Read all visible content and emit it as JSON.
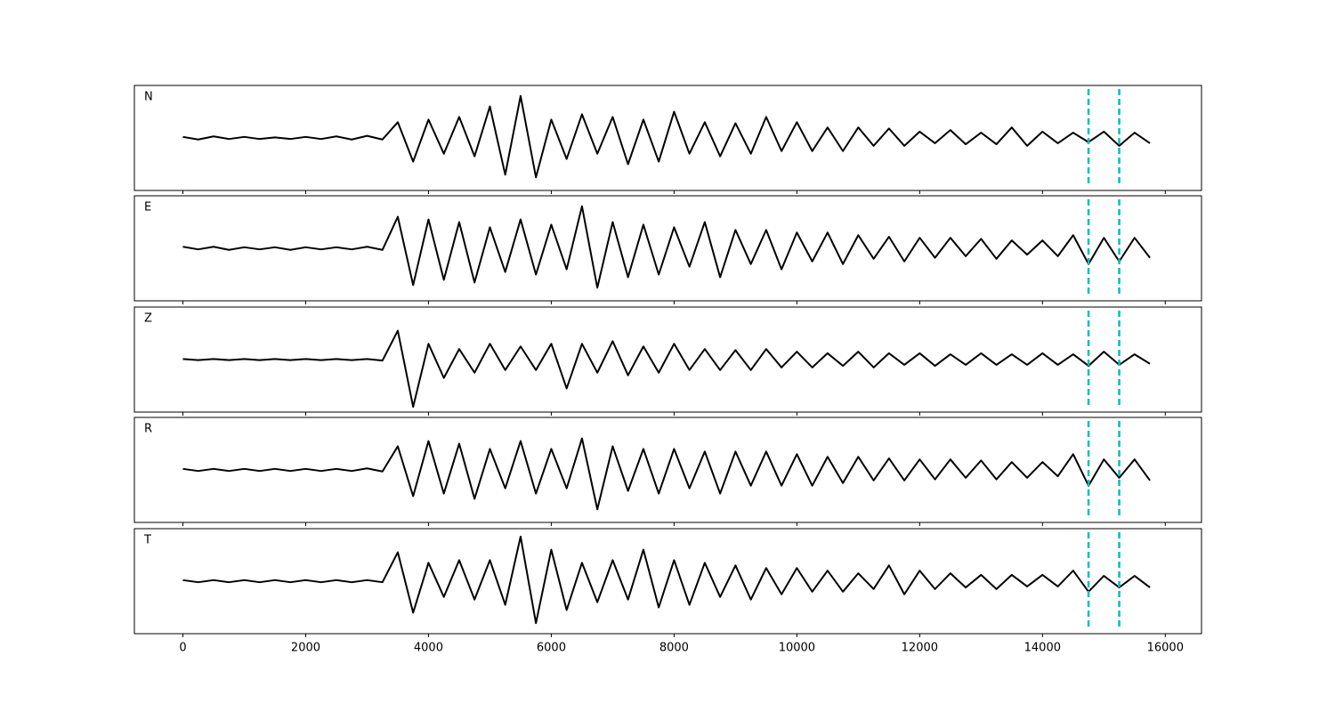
{
  "chart_data": [
    {
      "type": "line",
      "label": "N",
      "color": "#000000",
      "xlim": [
        -790,
        16590
      ],
      "ylim": [
        -1,
        1
      ],
      "vlines": [
        14750,
        15250
      ],
      "vline_color": "#00bfbf",
      "x": [
        0,
        250,
        500,
        750,
        1000,
        1250,
        1500,
        1750,
        2000,
        2250,
        2500,
        2750,
        3000,
        3250,
        3500,
        3750,
        4000,
        4250,
        4500,
        4750,
        5000,
        5250,
        5500,
        5750,
        6000,
        6250,
        6500,
        6750,
        7000,
        7250,
        7500,
        7750,
        8000,
        8250,
        8500,
        8750,
        9000,
        9250,
        9500,
        9750,
        10000,
        10250,
        10500,
        10750,
        11000,
        11250,
        11500,
        11750,
        12000,
        12250,
        12500,
        12750,
        13000,
        13250,
        13500,
        13750,
        14000,
        14250,
        14500,
        14750,
        15000,
        15250,
        15500,
        15750
      ],
      "values": [
        0.02,
        -0.03,
        0.03,
        -0.02,
        0.02,
        -0.02,
        0.01,
        -0.02,
        0.02,
        -0.02,
        0.03,
        -0.03,
        0.04,
        -0.03,
        0.3,
        -0.45,
        0.35,
        -0.3,
        0.4,
        -0.35,
        0.6,
        -0.7,
        0.8,
        -0.75,
        0.35,
        -0.4,
        0.45,
        -0.3,
        0.4,
        -0.5,
        0.35,
        -0.45,
        0.5,
        -0.3,
        0.3,
        -0.35,
        0.28,
        -0.3,
        0.4,
        -0.25,
        0.3,
        -0.25,
        0.2,
        -0.25,
        0.2,
        -0.15,
        0.18,
        -0.15,
        0.12,
        -0.1,
        0.15,
        -0.12,
        0.1,
        -0.12,
        0.2,
        -0.15,
        0.12,
        -0.1,
        0.1,
        -0.08,
        0.12,
        -0.15,
        0.1,
        -0.1
      ]
    },
    {
      "type": "line",
      "label": "E",
      "color": "#000000",
      "xlim": [
        -790,
        16590
      ],
      "ylim": [
        -1,
        1
      ],
      "vlines": [
        14750,
        15250
      ],
      "vline_color": "#00bfbf",
      "x": [
        0,
        250,
        500,
        750,
        1000,
        1250,
        1500,
        1750,
        2000,
        2250,
        2500,
        2750,
        3000,
        3250,
        3500,
        3750,
        4000,
        4250,
        4500,
        4750,
        5000,
        5250,
        5500,
        5750,
        6000,
        6250,
        6500,
        6750,
        7000,
        7250,
        7500,
        7750,
        8000,
        8250,
        8500,
        8750,
        9000,
        9250,
        9500,
        9750,
        10000,
        10250,
        10500,
        10750,
        11000,
        11250,
        11500,
        11750,
        12000,
        12250,
        12500,
        12750,
        13000,
        13250,
        13500,
        13750,
        14000,
        14250,
        14500,
        14750,
        15000,
        15250,
        15500,
        15750
      ],
      "values": [
        0.03,
        -0.02,
        0.03,
        -0.03,
        0.02,
        -0.02,
        0.02,
        -0.03,
        0.02,
        -0.02,
        0.02,
        -0.02,
        0.03,
        -0.03,
        0.6,
        -0.7,
        0.55,
        -0.6,
        0.5,
        -0.65,
        0.4,
        -0.45,
        0.55,
        -0.5,
        0.45,
        -0.4,
        0.8,
        -0.75,
        0.5,
        -0.55,
        0.45,
        -0.5,
        0.4,
        -0.35,
        0.5,
        -0.55,
        0.35,
        -0.3,
        0.35,
        -0.4,
        0.3,
        -0.25,
        0.3,
        -0.3,
        0.25,
        -0.2,
        0.22,
        -0.25,
        0.2,
        -0.18,
        0.2,
        -0.15,
        0.18,
        -0.2,
        0.15,
        -0.12,
        0.15,
        -0.15,
        0.25,
        -0.3,
        0.2,
        -0.25,
        0.2,
        -0.18
      ]
    },
    {
      "type": "line",
      "label": "Z",
      "color": "#000000",
      "xlim": [
        -790,
        16590
      ],
      "ylim": [
        -1,
        1
      ],
      "vlines": [
        14750,
        15250
      ],
      "vline_color": "#00bfbf",
      "x": [
        0,
        250,
        500,
        750,
        1000,
        1250,
        1500,
        1750,
        2000,
        2250,
        2500,
        2750,
        3000,
        3250,
        3500,
        3750,
        4000,
        4250,
        4500,
        4750,
        5000,
        5250,
        5500,
        5750,
        6000,
        6250,
        6500,
        6750,
        7000,
        7250,
        7500,
        7750,
        8000,
        8250,
        8500,
        8750,
        9000,
        9250,
        9500,
        9750,
        10000,
        10250,
        10500,
        10750,
        11000,
        11250,
        11500,
        11750,
        12000,
        12250,
        12500,
        12750,
        13000,
        13250,
        13500,
        13750,
        14000,
        14250,
        14500,
        14750,
        15000,
        15250,
        15500,
        15750
      ],
      "values": [
        0.01,
        -0.01,
        0.01,
        -0.01,
        0.01,
        -0.01,
        0.01,
        -0.01,
        0.01,
        -0.01,
        0.01,
        -0.01,
        0.01,
        -0.02,
        0.55,
        -0.9,
        0.3,
        -0.35,
        0.2,
        -0.25,
        0.3,
        -0.2,
        0.25,
        -0.2,
        0.3,
        -0.55,
        0.3,
        -0.25,
        0.35,
        -0.3,
        0.25,
        -0.25,
        0.3,
        -0.2,
        0.2,
        -0.2,
        0.18,
        -0.2,
        0.2,
        -0.15,
        0.15,
        -0.15,
        0.12,
        -0.12,
        0.15,
        -0.15,
        0.12,
        -0.1,
        0.12,
        -0.12,
        0.1,
        -0.1,
        0.12,
        -0.1,
        0.1,
        -0.1,
        0.12,
        -0.1,
        0.1,
        -0.12,
        0.15,
        -0.1,
        0.1,
        -0.08
      ]
    },
    {
      "type": "line",
      "label": "R",
      "color": "#000000",
      "xlim": [
        -790,
        16590
      ],
      "ylim": [
        -1,
        1
      ],
      "vlines": [
        14750,
        15250
      ],
      "vline_color": "#00bfbf",
      "x": [
        0,
        250,
        500,
        750,
        1000,
        1250,
        1500,
        1750,
        2000,
        2250,
        2500,
        2750,
        3000,
        3250,
        3500,
        3750,
        4000,
        4250,
        4500,
        4750,
        5000,
        5250,
        5500,
        5750,
        6000,
        6250,
        6500,
        6750,
        7000,
        7250,
        7500,
        7750,
        8000,
        8250,
        8500,
        8750,
        9000,
        9250,
        9500,
        9750,
        10000,
        10250,
        10500,
        10750,
        11000,
        11250,
        11500,
        11750,
        12000,
        12250,
        12500,
        12750,
        13000,
        13250,
        13500,
        13750,
        14000,
        14250,
        14500,
        14750,
        15000,
        15250,
        15500,
        15750
      ],
      "values": [
        0.02,
        -0.02,
        0.02,
        -0.02,
        0.02,
        -0.02,
        0.02,
        -0.02,
        0.02,
        -0.02,
        0.02,
        -0.02,
        0.03,
        -0.03,
        0.45,
        -0.5,
        0.55,
        -0.45,
        0.5,
        -0.55,
        0.4,
        -0.35,
        0.55,
        -0.45,
        0.4,
        -0.35,
        0.6,
        -0.75,
        0.45,
        -0.4,
        0.4,
        -0.45,
        0.4,
        -0.35,
        0.35,
        -0.45,
        0.35,
        -0.3,
        0.35,
        -0.3,
        0.3,
        -0.3,
        0.25,
        -0.25,
        0.25,
        -0.2,
        0.22,
        -0.2,
        0.2,
        -0.18,
        0.2,
        -0.15,
        0.18,
        -0.18,
        0.15,
        -0.15,
        0.15,
        -0.12,
        0.3,
        -0.3,
        0.2,
        -0.15,
        0.2,
        -0.2
      ]
    },
    {
      "type": "line",
      "label": "T",
      "color": "#000000",
      "xlim": [
        -790,
        16590
      ],
      "ylim": [
        -1,
        1
      ],
      "vlines": [
        14750,
        15250
      ],
      "vline_color": "#00bfbf",
      "xticks": [
        0,
        2000,
        4000,
        6000,
        8000,
        10000,
        12000,
        14000,
        16000
      ],
      "x": [
        0,
        250,
        500,
        750,
        1000,
        1250,
        1500,
        1750,
        2000,
        2250,
        2500,
        2750,
        3000,
        3250,
        3500,
        3750,
        4000,
        4250,
        4500,
        4750,
        5000,
        5250,
        5500,
        5750,
        6000,
        6250,
        6500,
        6750,
        7000,
        7250,
        7500,
        7750,
        8000,
        8250,
        8500,
        8750,
        9000,
        9250,
        9500,
        9750,
        10000,
        10250,
        10500,
        10750,
        11000,
        11250,
        11500,
        11750,
        12000,
        12250,
        12500,
        12750,
        13000,
        13250,
        13500,
        13750,
        14000,
        14250,
        14500,
        14750,
        15000,
        15250,
        15500,
        15750
      ],
      "values": [
        0.02,
        -0.02,
        0.02,
        -0.02,
        0.02,
        -0.02,
        0.02,
        -0.02,
        0.02,
        -0.02,
        0.02,
        -0.02,
        0.02,
        -0.02,
        0.55,
        -0.6,
        0.35,
        -0.3,
        0.4,
        -0.35,
        0.4,
        -0.45,
        0.85,
        -0.8,
        0.6,
        -0.55,
        0.35,
        -0.4,
        0.4,
        -0.35,
        0.6,
        -0.5,
        0.4,
        -0.45,
        0.35,
        -0.3,
        0.3,
        -0.35,
        0.25,
        -0.25,
        0.25,
        -0.2,
        0.2,
        -0.2,
        0.15,
        -0.15,
        0.3,
        -0.25,
        0.2,
        -0.15,
        0.15,
        -0.12,
        0.12,
        -0.15,
        0.12,
        -0.1,
        0.12,
        -0.1,
        0.2,
        -0.2,
        0.1,
        -0.12,
        0.1,
        -0.12
      ]
    }
  ]
}
